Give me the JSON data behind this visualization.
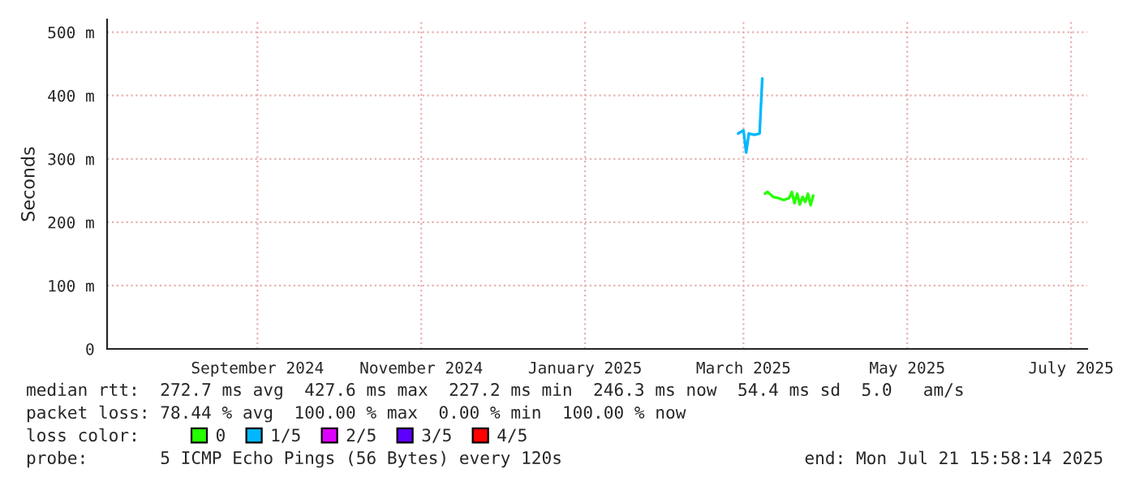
{
  "chart_data": {
    "type": "line",
    "ylabel": "Seconds",
    "xlim": [
      "2024-07-21",
      "2025-07-21"
    ],
    "xticks": [
      {
        "value": "2024-09-15",
        "label": "September 2024"
      },
      {
        "value": "2024-11-15",
        "label": "November 2024"
      },
      {
        "value": "2025-01-15",
        "label": "January 2025"
      },
      {
        "value": "2025-03-15",
        "label": "March 2025"
      },
      {
        "value": "2025-05-15",
        "label": "May 2025"
      },
      {
        "value": "2025-07-15",
        "label": "July 2025"
      }
    ],
    "ylim": [
      0,
      520
    ],
    "yticks": [
      0,
      {
        "value": 100,
        "label": "100 m"
      },
      {
        "value": 200,
        "label": "200 m"
      },
      {
        "value": 300,
        "label": "300 m"
      },
      {
        "value": 400,
        "label": "400 m"
      },
      {
        "value": 500,
        "label": "500 m"
      }
    ],
    "grid": true,
    "legend": "bottom left",
    "legend_title": "loss color:",
    "series": [
      {
        "name": "0",
        "color": "#26ff00",
        "x": [
          "2025-03-23",
          "2025-03-24",
          "2025-03-26",
          "2025-03-28",
          "2025-03-30",
          "2025-04-01",
          "2025-04-02",
          "2025-04-03",
          "2025-04-04",
          "2025-04-05",
          "2025-04-06",
          "2025-04-07",
          "2025-04-08",
          "2025-04-09",
          "2025-04-10"
        ],
        "values": [
          245,
          248,
          240,
          238,
          235,
          238,
          248,
          230,
          245,
          228,
          240,
          232,
          245,
          227,
          242
        ]
      },
      {
        "name": "1/5",
        "color": "#00b8ff",
        "x": [
          "2025-03-13",
          "2025-03-15",
          "2025-03-16",
          "2025-03-17",
          "2025-03-19",
          "2025-03-21",
          "2025-03-22"
        ],
        "values": [
          340,
          345,
          310,
          340,
          338,
          340,
          427
        ]
      },
      {
        "name": "2/5",
        "color": "#dd00ff"
      },
      {
        "name": "3/5",
        "color": "#5e00ff"
      },
      {
        "name": "4/5",
        "color": "#ff0000"
      }
    ],
    "annotations": [
      "median rtt:  272.7 ms avg  427.6 ms max  227.2 ms min  246.3 ms now  54.4 ms sd  5.0   am/s",
      "packet loss: 78.44 % avg  100.00 % max  0.00 % min  100.00 % now",
      "probe:       5 ICMP Echo Pings (56 Bytes) every 120s",
      "end: Mon Jul 21 15:58:14 2025"
    ]
  }
}
